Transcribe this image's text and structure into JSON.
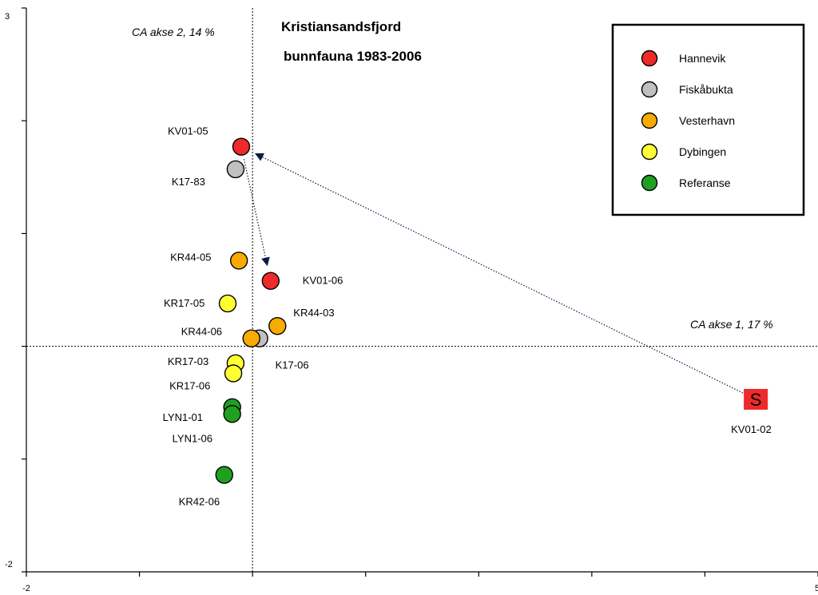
{
  "chart_data": {
    "type": "scatter",
    "title": [
      "Kristiansandsfjord",
      "bunnfauna 1983-2006"
    ],
    "xlabel": "CA akse 1, 17 %",
    "ylabel": "CA akse 2, 14 %",
    "xlim": [
      -2,
      5
    ],
    "ylim": [
      -2,
      3
    ],
    "x_tick_labels": [
      "-2",
      "5"
    ],
    "y_tick_labels": [
      "3",
      "-2"
    ],
    "grid": false,
    "legend_position": "top-right",
    "series": [
      {
        "name": "Hannevik",
        "color": "#ee2a2a",
        "marker": "circle"
      },
      {
        "name": "Fiskåbukta",
        "color": "#c0c0c0",
        "marker": "circle"
      },
      {
        "name": "Vesterhavn",
        "color": "#f7ab00",
        "marker": "circle"
      },
      {
        "name": "Dybingen",
        "color": "#ffff33",
        "marker": "circle"
      },
      {
        "name": "Referanse",
        "color": "#20a020",
        "marker": "circle"
      }
    ],
    "points": [
      {
        "label": "KV01-05",
        "series": "Hannevik",
        "x": -0.1,
        "y": 1.77
      },
      {
        "label": "K17-83",
        "series": "Fiskåbukta",
        "x": -0.15,
        "y": 1.57
      },
      {
        "label": "KR44-05",
        "series": "Vesterhavn",
        "x": -0.12,
        "y": 0.76
      },
      {
        "label": "KV01-06",
        "series": "Hannevik",
        "x": 0.16,
        "y": 0.58
      },
      {
        "label": "KR17-05",
        "series": "Dybingen",
        "x": -0.22,
        "y": 0.38
      },
      {
        "label": "KR44-03",
        "series": "Vesterhavn",
        "x": 0.22,
        "y": 0.18
      },
      {
        "label": "K17-06",
        "series": "Fiskåbukta",
        "x": 0.06,
        "y": 0.07
      },
      {
        "label": "KR44-06",
        "series": "Vesterhavn",
        "x": -0.01,
        "y": 0.07
      },
      {
        "label": "KR17-03",
        "series": "Dybingen",
        "x": -0.15,
        "y": -0.15
      },
      {
        "label": "KR17-06",
        "series": "Dybingen",
        "x": -0.17,
        "y": -0.24
      },
      {
        "label": "LYN1-01",
        "series": "Referanse",
        "x": -0.18,
        "y": -0.54
      },
      {
        "label": "LYN1-06",
        "series": "Referanse",
        "x": -0.18,
        "y": -0.6
      },
      {
        "label": "KR42-06",
        "series": "Referanse",
        "x": -0.25,
        "y": -1.14
      },
      {
        "label": "KV01-02",
        "series": "Hannevik",
        "x": 4.45,
        "y": -0.47,
        "marker": "square",
        "marker_text": "S"
      }
    ],
    "arrows": [
      {
        "from": "KV01-02",
        "to": "KV01-05"
      },
      {
        "from": "KV01-05",
        "to": "KV01-06"
      }
    ]
  }
}
